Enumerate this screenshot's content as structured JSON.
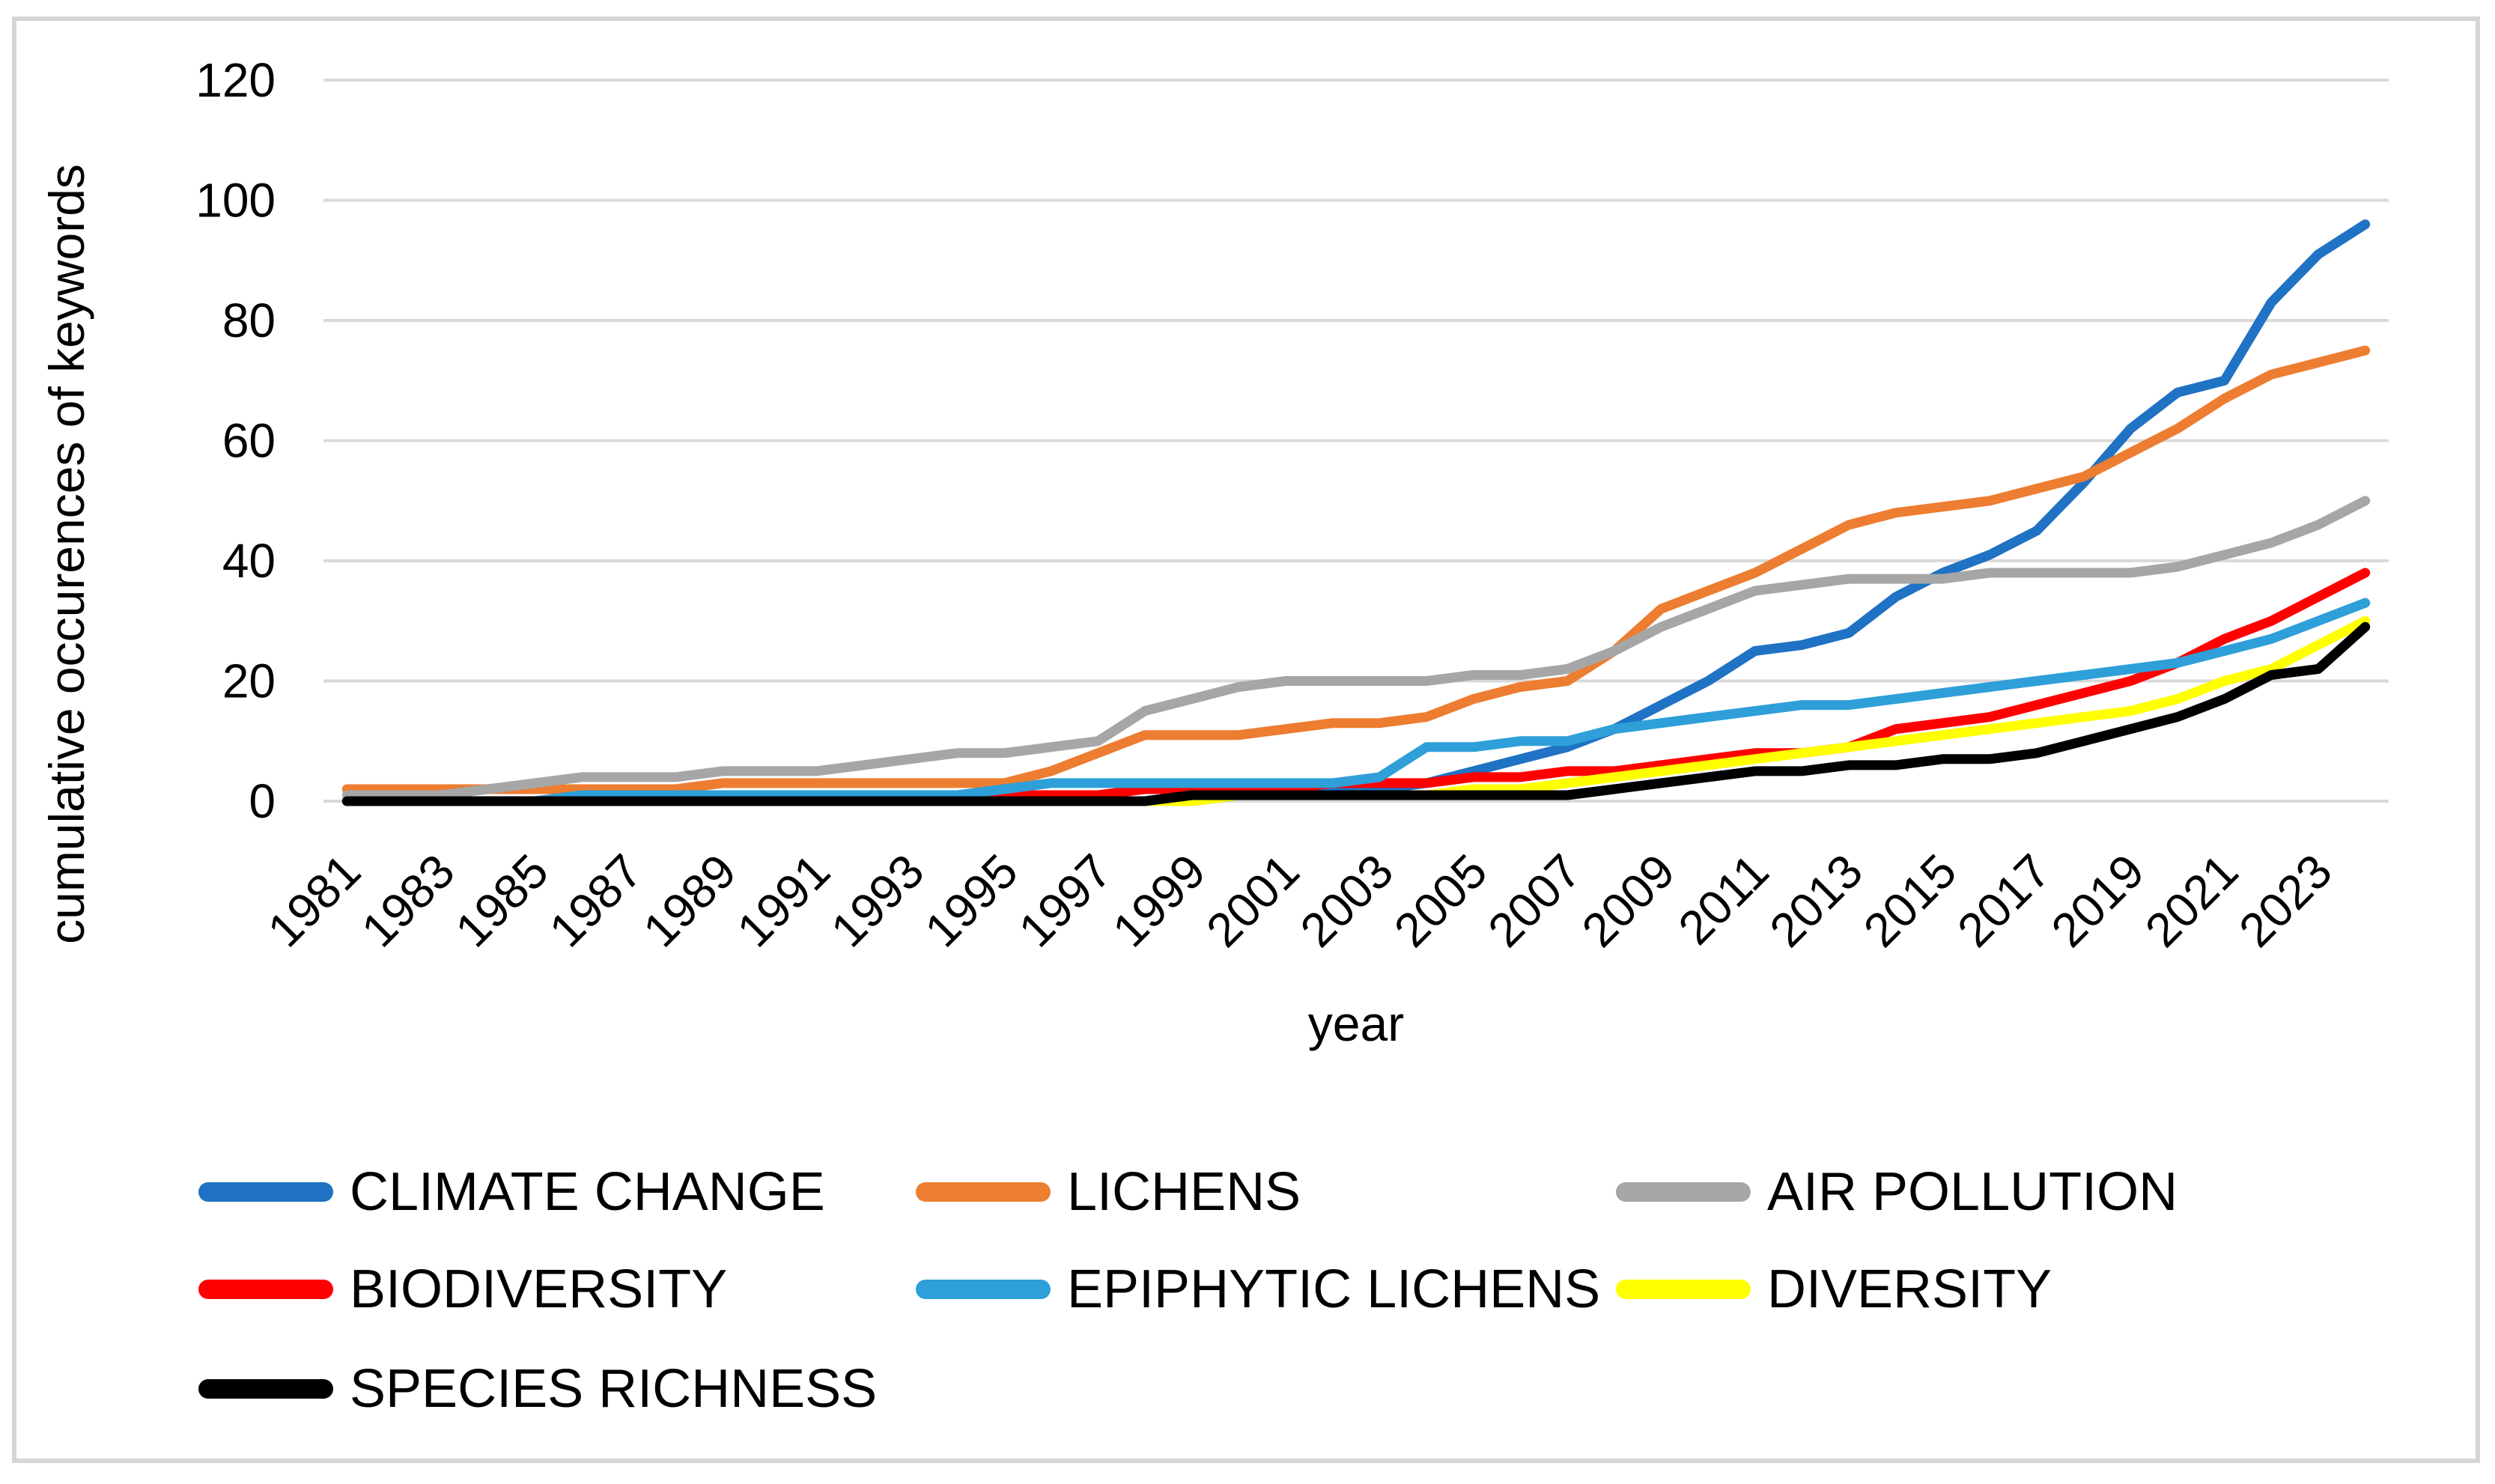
{
  "chart_data": {
    "type": "line",
    "x": [
      1981,
      1982,
      1983,
      1984,
      1985,
      1986,
      1987,
      1988,
      1989,
      1990,
      1991,
      1992,
      1993,
      1994,
      1995,
      1996,
      1997,
      1998,
      1999,
      2000,
      2001,
      2002,
      2003,
      2004,
      2005,
      2006,
      2007,
      2008,
      2009,
      2010,
      2011,
      2012,
      2013,
      2014,
      2015,
      2016,
      2017,
      2018,
      2019,
      2020,
      2021,
      2022,
      2023,
      2024
    ],
    "xlabel": "year",
    "ylabel": "cumulative occurences of keywords",
    "ylim": [
      0,
      120
    ],
    "ytick_step": 20,
    "yticks": [
      0,
      20,
      40,
      60,
      80,
      100,
      120
    ],
    "xtick_labels": [
      "1981",
      "1983",
      "1985",
      "1987",
      "1989",
      "1991",
      "1993",
      "1995",
      "1997",
      "1999",
      "2001",
      "2003",
      "2005",
      "2007",
      "2009",
      "2011",
      "2013",
      "2015",
      "2017",
      "2019",
      "2021",
      "2023"
    ],
    "grid": "horizontal",
    "legend_position": "bottom",
    "series": [
      {
        "name": "CLIMATE CHANGE",
        "color": "#1F72C4",
        "values": [
          0,
          0,
          0,
          0,
          0,
          0,
          0,
          0,
          0,
          0,
          0,
          0,
          0,
          0,
          0,
          0,
          0,
          0,
          0,
          1,
          2,
          2,
          2,
          3,
          5,
          7,
          9,
          12,
          16,
          20,
          25,
          26,
          28,
          34,
          38,
          41,
          45,
          53,
          62,
          68,
          70,
          83,
          91,
          96
        ]
      },
      {
        "name": "LICHENS",
        "color": "#ED7D31",
        "values": [
          2,
          2,
          2,
          2,
          2,
          2,
          2,
          2,
          3,
          3,
          3,
          3,
          3,
          3,
          3,
          5,
          8,
          11,
          11,
          11,
          12,
          13,
          13,
          14,
          17,
          19,
          20,
          25,
          32,
          35,
          38,
          42,
          46,
          48,
          49,
          50,
          52,
          54,
          58,
          62,
          67,
          71,
          73,
          75
        ]
      },
      {
        "name": "AIR POLLUTION",
        "color": "#A6A6A6",
        "values": [
          1,
          1,
          1,
          2,
          3,
          4,
          4,
          4,
          5,
          5,
          5,
          6,
          7,
          8,
          8,
          9,
          10,
          15,
          17,
          19,
          20,
          20,
          20,
          20,
          21,
          21,
          22,
          25,
          29,
          32,
          35,
          36,
          37,
          37,
          37,
          38,
          38,
          38,
          38,
          39,
          41,
          43,
          46,
          50
        ]
      },
      {
        "name": "BIODIVERSITY",
        "color": "#FF0000",
        "values": [
          0,
          0,
          0,
          0,
          0,
          0,
          0,
          0,
          0,
          0,
          0,
          0,
          0,
          0,
          1,
          1,
          1,
          2,
          2,
          2,
          2,
          3,
          3,
          3,
          4,
          4,
          5,
          5,
          6,
          7,
          8,
          8,
          9,
          12,
          13,
          14,
          16,
          18,
          20,
          23,
          27,
          30,
          34,
          38
        ]
      },
      {
        "name": "EPIPHYTIC LICHENS",
        "color": "#2E9FD8",
        "values": [
          0,
          0,
          0,
          0,
          0,
          1,
          1,
          1,
          1,
          1,
          1,
          1,
          1,
          1,
          2,
          3,
          3,
          3,
          3,
          3,
          3,
          3,
          4,
          9,
          9,
          10,
          10,
          12,
          13,
          14,
          15,
          16,
          16,
          17,
          18,
          19,
          20,
          21,
          22,
          23,
          25,
          27,
          30,
          33
        ]
      },
      {
        "name": "DIVERSITY",
        "color": "#FFFF00",
        "values": [
          0,
          0,
          0,
          0,
          0,
          0,
          0,
          0,
          0,
          0,
          0,
          0,
          0,
          0,
          0,
          0,
          0,
          0,
          0,
          1,
          1,
          1,
          1,
          1,
          2,
          2,
          3,
          4,
          5,
          6,
          7,
          8,
          9,
          10,
          11,
          12,
          13,
          14,
          15,
          17,
          20,
          22,
          26,
          30
        ]
      },
      {
        "name": "SPECIES RICHNESS",
        "color": "#000000",
        "values": [
          0,
          0,
          0,
          0,
          0,
          0,
          0,
          0,
          0,
          0,
          0,
          0,
          0,
          0,
          0,
          0,
          0,
          0,
          1,
          1,
          1,
          1,
          1,
          1,
          1,
          1,
          1,
          2,
          3,
          4,
          5,
          5,
          6,
          6,
          7,
          7,
          8,
          10,
          12,
          14,
          17,
          21,
          22,
          29
        ]
      }
    ],
    "legend_rows": [
      [
        "CLIMATE CHANGE",
        "LICHENS",
        "AIR POLLUTION"
      ],
      [
        "BIODIVERSITY",
        "EPIPHYTIC LICHENS",
        "DIVERSITY"
      ],
      [
        "SPECIES RICHNESS"
      ]
    ]
  },
  "axes": {
    "y_title": "cumulative occurences of keywords",
    "x_title": "year"
  }
}
